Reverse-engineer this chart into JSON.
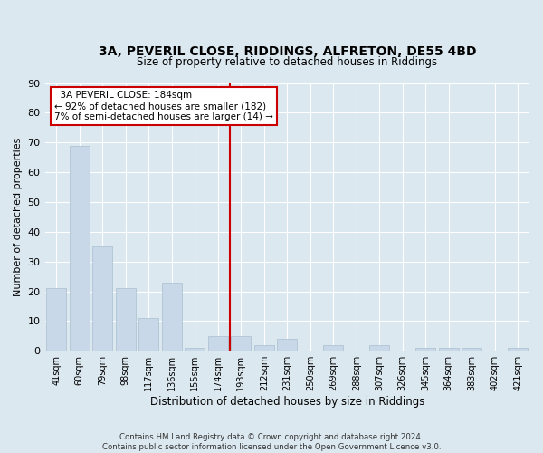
{
  "title1": "3A, PEVERIL CLOSE, RIDDINGS, ALFRETON, DE55 4BD",
  "title2": "Size of property relative to detached houses in Riddings",
  "xlabel": "Distribution of detached houses by size in Riddings",
  "ylabel": "Number of detached properties",
  "footnote": "Contains HM Land Registry data © Crown copyright and database right 2024.\nContains public sector information licensed under the Open Government Licence v3.0.",
  "categories": [
    "41sqm",
    "60sqm",
    "79sqm",
    "98sqm",
    "117sqm",
    "136sqm",
    "155sqm",
    "174sqm",
    "193sqm",
    "212sqm",
    "231sqm",
    "250sqm",
    "269sqm",
    "288sqm",
    "307sqm",
    "326sqm",
    "345sqm",
    "364sqm",
    "383sqm",
    "402sqm",
    "421sqm"
  ],
  "values": [
    21,
    69,
    35,
    21,
    11,
    23,
    1,
    5,
    5,
    2,
    4,
    0,
    2,
    0,
    2,
    0,
    1,
    1,
    1,
    0,
    1
  ],
  "bar_color": "#c8d8e8",
  "bar_edge_color": "#a8bece",
  "vline_x": 7.5,
  "vline_color": "#cc0000",
  "annotation_title": "3A PEVERIL CLOSE: 184sqm",
  "annotation_line1": "← 92% of detached houses are smaller (182)",
  "annotation_line2": "7% of semi-detached houses are larger (14) →",
  "annotation_box_color": "#cc0000",
  "ylim": [
    0,
    90
  ],
  "yticks": [
    0,
    10,
    20,
    30,
    40,
    50,
    60,
    70,
    80,
    90
  ],
  "bg_color": "#dce8f0",
  "plot_bg_color": "#dce8f0",
  "grid_color": "#ffffff"
}
